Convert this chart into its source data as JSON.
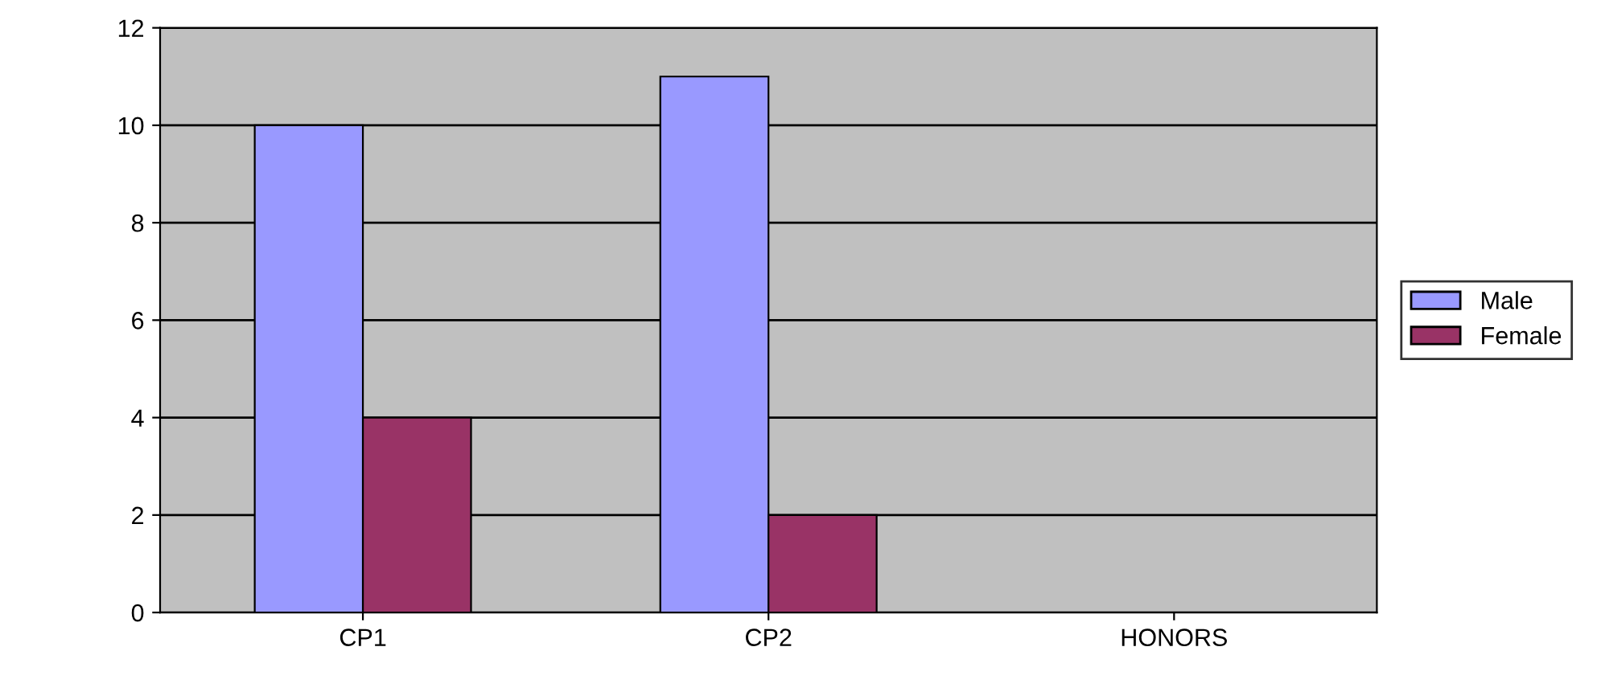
{
  "chart_data": {
    "type": "bar",
    "categories": [
      "CP1",
      "CP2",
      "HONORS"
    ],
    "series": [
      {
        "name": "Male",
        "color": "#9999ff",
        "values": [
          10,
          11,
          null
        ]
      },
      {
        "name": "Female",
        "color": "#993366",
        "values": [
          4,
          2,
          null
        ]
      }
    ],
    "ylim": [
      0,
      12
    ],
    "yticks": [
      0,
      2,
      4,
      6,
      8,
      10,
      12
    ],
    "grid": "y",
    "legend": "right"
  }
}
